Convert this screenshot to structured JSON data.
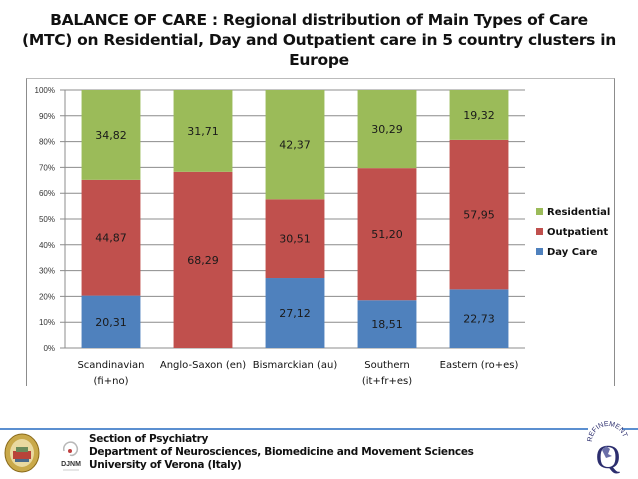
{
  "title": {
    "line1": "BALANCE OF CARE : Regional distribution of Main Types of Care",
    "line2": "(MTC) on Residential, Day and Outpatient care in 5 country clusters in",
    "line3": "Europe"
  },
  "colors": {
    "residential": "#9bbb59",
    "outpatient": "#c0504d",
    "day_care": "#4f81bd",
    "gridline": "#8c8c8c",
    "footer_rule": "#5b8fd0"
  },
  "chart_data": {
    "type": "bar",
    "stacked": true,
    "percent_stacked": true,
    "title": "BALANCE OF CARE : Regional distribution of Main Types of Care (MTC) on Residential, Day and Outpatient care in 5 country clusters in Europe",
    "xlabel": "",
    "ylabel": "",
    "ylim": [
      0,
      100
    ],
    "y_ticks": [
      "0%",
      "10%",
      "20%",
      "30%",
      "40%",
      "50%",
      "60%",
      "70%",
      "80%",
      "90%",
      "100%"
    ],
    "grid": true,
    "legend_position": "right",
    "categories": [
      [
        "Scandinavian",
        "(fi+no)"
      ],
      [
        "Anglo-Saxon (en)"
      ],
      [
        "Bismarckian (au)"
      ],
      [
        "Southern",
        "(it+fr+es)"
      ],
      [
        "Eastern (ro+es)"
      ]
    ],
    "series": [
      {
        "name": "Day Care",
        "color": "#4f81bd",
        "values": [
          20.31,
          0,
          27.12,
          18.51,
          22.73
        ],
        "labels": [
          "20,31",
          "",
          "27,12",
          "18,51",
          "22,73"
        ]
      },
      {
        "name": "Outpatient",
        "color": "#c0504d",
        "values": [
          44.87,
          68.29,
          30.51,
          51.2,
          57.95
        ],
        "labels": [
          "44,87",
          "68,29",
          "30,51",
          "51,20",
          "57,95"
        ]
      },
      {
        "name": "Residential",
        "color": "#9bbb59",
        "values": [
          34.82,
          31.71,
          42.37,
          30.29,
          19.32
        ],
        "labels": [
          "34,82",
          "31,71",
          "42,37",
          "30,29",
          "19,32"
        ]
      }
    ],
    "legend": [
      "Residential",
      "Outpatient",
      "Day Care"
    ]
  },
  "footer": {
    "line1": "Section of Psychiatry",
    "line2": "Department  of Neurosciences, Biomedicine and Movement Sciences",
    "line3": "University of Verona (Italy)",
    "logo_left_text": "DJNM",
    "logo_right_text": "REFINEMENT",
    "logo_right_letter": "Q"
  }
}
